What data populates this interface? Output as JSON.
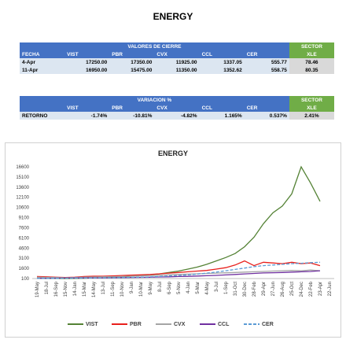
{
  "title": "ENERGY",
  "closing_table": {
    "group_header": "VALORES DE CIERRE",
    "sector_header": "SECTOR",
    "columns": [
      "FECHA",
      "VIST",
      "PBR",
      "CVX",
      "CCL",
      "CER",
      "XLE"
    ],
    "rows": [
      [
        "4-Apr",
        "17250.00",
        "17350.00",
        "11925.00",
        "1337.05",
        "555.77",
        "78.46"
      ],
      [
        "11-Apr",
        "16950.00",
        "15475.00",
        "11350.00",
        "1352.62",
        "558.75",
        "80.35"
      ]
    ]
  },
  "variation_table": {
    "group_header": "VARIACION %",
    "sector_header": "SECTOR",
    "columns": [
      "VIST",
      "PBR",
      "CVX",
      "CCL",
      "CER",
      "XLE"
    ],
    "rows": [
      [
        "RETORNO",
        "-1.74%",
        "-10.81%",
        "-4.82%",
        "1.165%",
        "0.537%",
        "2.41%"
      ]
    ]
  },
  "chart_data": {
    "type": "line",
    "title": "ENERGY",
    "categories": [
      "19-May",
      "18-Jul",
      "16-Sep",
      "15-Nov",
      "14-Jan",
      "15-Mar",
      "14-May",
      "13-Jul",
      "11-Sep",
      "10-Nov",
      "9-Jan",
      "10-Mar",
      "9-May",
      "8-Jul",
      "6-Sep",
      "5-Nov",
      "4-Jan",
      "5-Mar",
      "4-May",
      "3-Jul",
      "1-Sep",
      "31-Oct",
      "30-Dec",
      "28-Feb",
      "29-Apr",
      "27-Jun",
      "26-Aug",
      "25-Oct",
      "24-Dec",
      "22-Feb",
      "23-Apr",
      "22-Jun"
    ],
    "ylim": [
      100,
      16600
    ],
    "yticks": [
      100,
      1600,
      3100,
      4600,
      6100,
      7600,
      9100,
      10600,
      12100,
      13600,
      15100,
      16600
    ],
    "legend": "bottom",
    "series": [
      {
        "name": "VIST",
        "color": "#548235",
        "dashed": false,
        "values": [
          150,
          120,
          110,
          100,
          120,
          150,
          200,
          250,
          300,
          350,
          450,
          550,
          650,
          800,
          1000,
          1200,
          1500,
          1800,
          2200,
          2700,
          3200,
          3800,
          4800,
          6200,
          8200,
          9800,
          10800,
          12600,
          16600,
          14200,
          11500,
          null
        ]
      },
      {
        "name": "PBR",
        "color": "#e8201c",
        "dashed": false,
        "values": [
          400,
          350,
          300,
          250,
          300,
          400,
          450,
          450,
          500,
          550,
          600,
          650,
          700,
          800,
          900,
          1000,
          1100,
          1200,
          1300,
          1500,
          1700,
          2100,
          2700,
          2000,
          2500,
          2400,
          2300,
          2500,
          2300,
          2400,
          2000,
          null
        ]
      },
      {
        "name": "CVX",
        "color": "#a5a5a5",
        "dashed": false,
        "values": [
          300,
          280,
          250,
          220,
          250,
          300,
          330,
          350,
          380,
          400,
          450,
          500,
          550,
          600,
          650,
          700,
          750,
          800,
          850,
          900,
          950,
          1000,
          1050,
          1100,
          1150,
          1200,
          1250,
          1300,
          1250,
          1350,
          1250,
          null
        ]
      },
      {
        "name": "CCL",
        "color": "#7030a0",
        "dashed": false,
        "values": [
          150,
          150,
          160,
          170,
          180,
          190,
          200,
          210,
          220,
          240,
          260,
          280,
          300,
          330,
          360,
          400,
          430,
          470,
          520,
          570,
          640,
          700,
          780,
          860,
          920,
          960,
          1000,
          1050,
          1100,
          1150,
          1250,
          null
        ]
      },
      {
        "name": "CER",
        "color": "#5b9bd5",
        "dashed": true,
        "values": [
          120,
          130,
          140,
          150,
          160,
          170,
          180,
          200,
          220,
          240,
          270,
          300,
          340,
          400,
          470,
          550,
          650,
          760,
          900,
          1050,
          1250,
          1450,
          1650,
          1850,
          2000,
          2100,
          2200,
          2300,
          2350,
          2450,
          2500,
          null
        ]
      }
    ]
  }
}
